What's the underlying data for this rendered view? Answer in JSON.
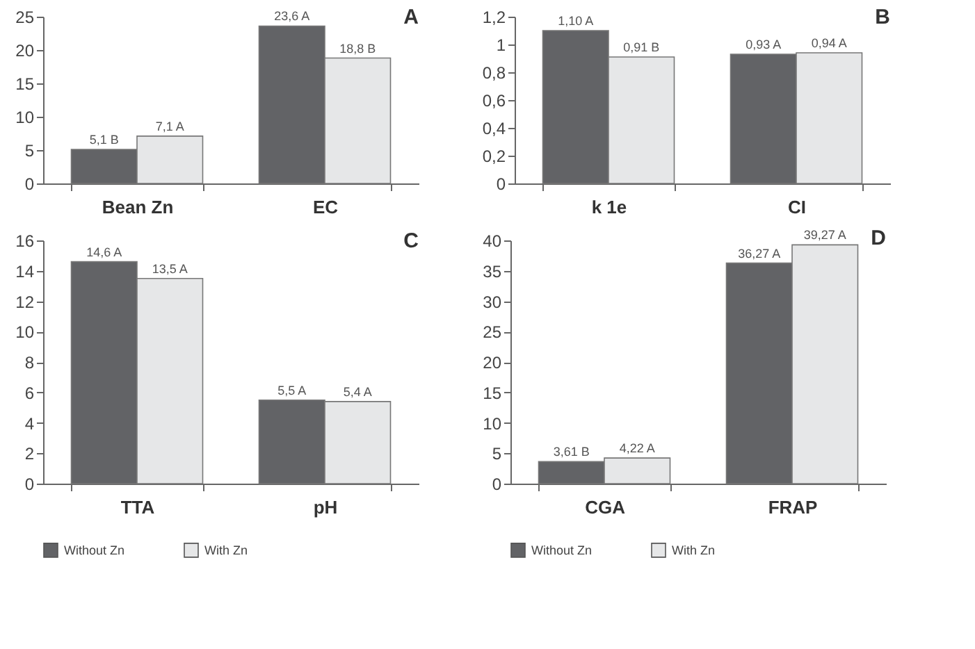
{
  "chart_data": [
    {
      "type": "bar",
      "title": "A",
      "categories": [
        "Bean Zn",
        "EC"
      ],
      "series": [
        {
          "color": "#626366",
          "values": [
            5.1,
            23.6
          ],
          "value_labels": [
            "5,1 B",
            "23,6 A"
          ]
        },
        {
          "color": "#e6e7e8",
          "values": [
            7.1,
            18.8
          ],
          "value_labels": [
            "7,1 A",
            "18,8 B"
          ]
        }
      ],
      "ylim": [
        0,
        25
      ],
      "yticks": [
        0,
        5,
        10,
        15,
        20,
        25
      ],
      "grid": false,
      "legend": false
    },
    {
      "type": "bar",
      "title": "B",
      "categories": [
        "k 1e",
        "CI"
      ],
      "series": [
        {
          "color": "#626366",
          "values": [
            1.1,
            0.93
          ],
          "value_labels": [
            "1,10 A",
            "0,93 A"
          ]
        },
        {
          "color": "#e6e7e8",
          "values": [
            0.91,
            0.94
          ],
          "value_labels": [
            "0,91 B",
            "0,94 A"
          ]
        }
      ],
      "ylim": [
        0,
        1.2
      ],
      "yticks": [
        0,
        {
          "value": 0.2,
          "label": "0,2"
        },
        {
          "value": 0.4,
          "label": "0,4"
        },
        {
          "value": 0.6,
          "label": "0,6"
        },
        {
          "value": 0.8,
          "label": "0,8"
        },
        1,
        {
          "value": 1.2,
          "label": "1,2"
        }
      ],
      "grid": false,
      "legend": false
    },
    {
      "type": "bar",
      "title": "C",
      "categories": [
        "TTA",
        "pH"
      ],
      "series": [
        {
          "name": "Without Zn",
          "color": "#626366",
          "values": [
            14.6,
            5.5
          ],
          "value_labels": [
            "14,6 A",
            "5,5 A"
          ]
        },
        {
          "name": "With Zn",
          "color": "#e6e7e8",
          "values": [
            13.5,
            5.4
          ],
          "value_labels": [
            "13,5 A",
            "5,4 A"
          ]
        }
      ],
      "ylim": [
        0,
        16
      ],
      "yticks": [
        0,
        2,
        4,
        6,
        8,
        10,
        12,
        14,
        16
      ],
      "grid": false,
      "legend": "bottom"
    },
    {
      "type": "bar",
      "title": "D",
      "categories": [
        "CGA",
        "FRAP"
      ],
      "series": [
        {
          "name": "Without Zn",
          "color": "#626366",
          "values": [
            3.61,
            36.27
          ],
          "value_labels": [
            "3,61 B",
            "36,27 A"
          ]
        },
        {
          "name": "With Zn",
          "color": "#e6e7e8",
          "values": [
            4.22,
            39.27
          ],
          "value_labels": [
            "4,22 A",
            "39,27 A"
          ]
        }
      ],
      "ylim": [
        0,
        40
      ],
      "yticks": [
        0,
        5,
        10,
        15,
        20,
        25,
        30,
        35,
        40
      ],
      "grid": false,
      "legend": "bottom"
    }
  ]
}
